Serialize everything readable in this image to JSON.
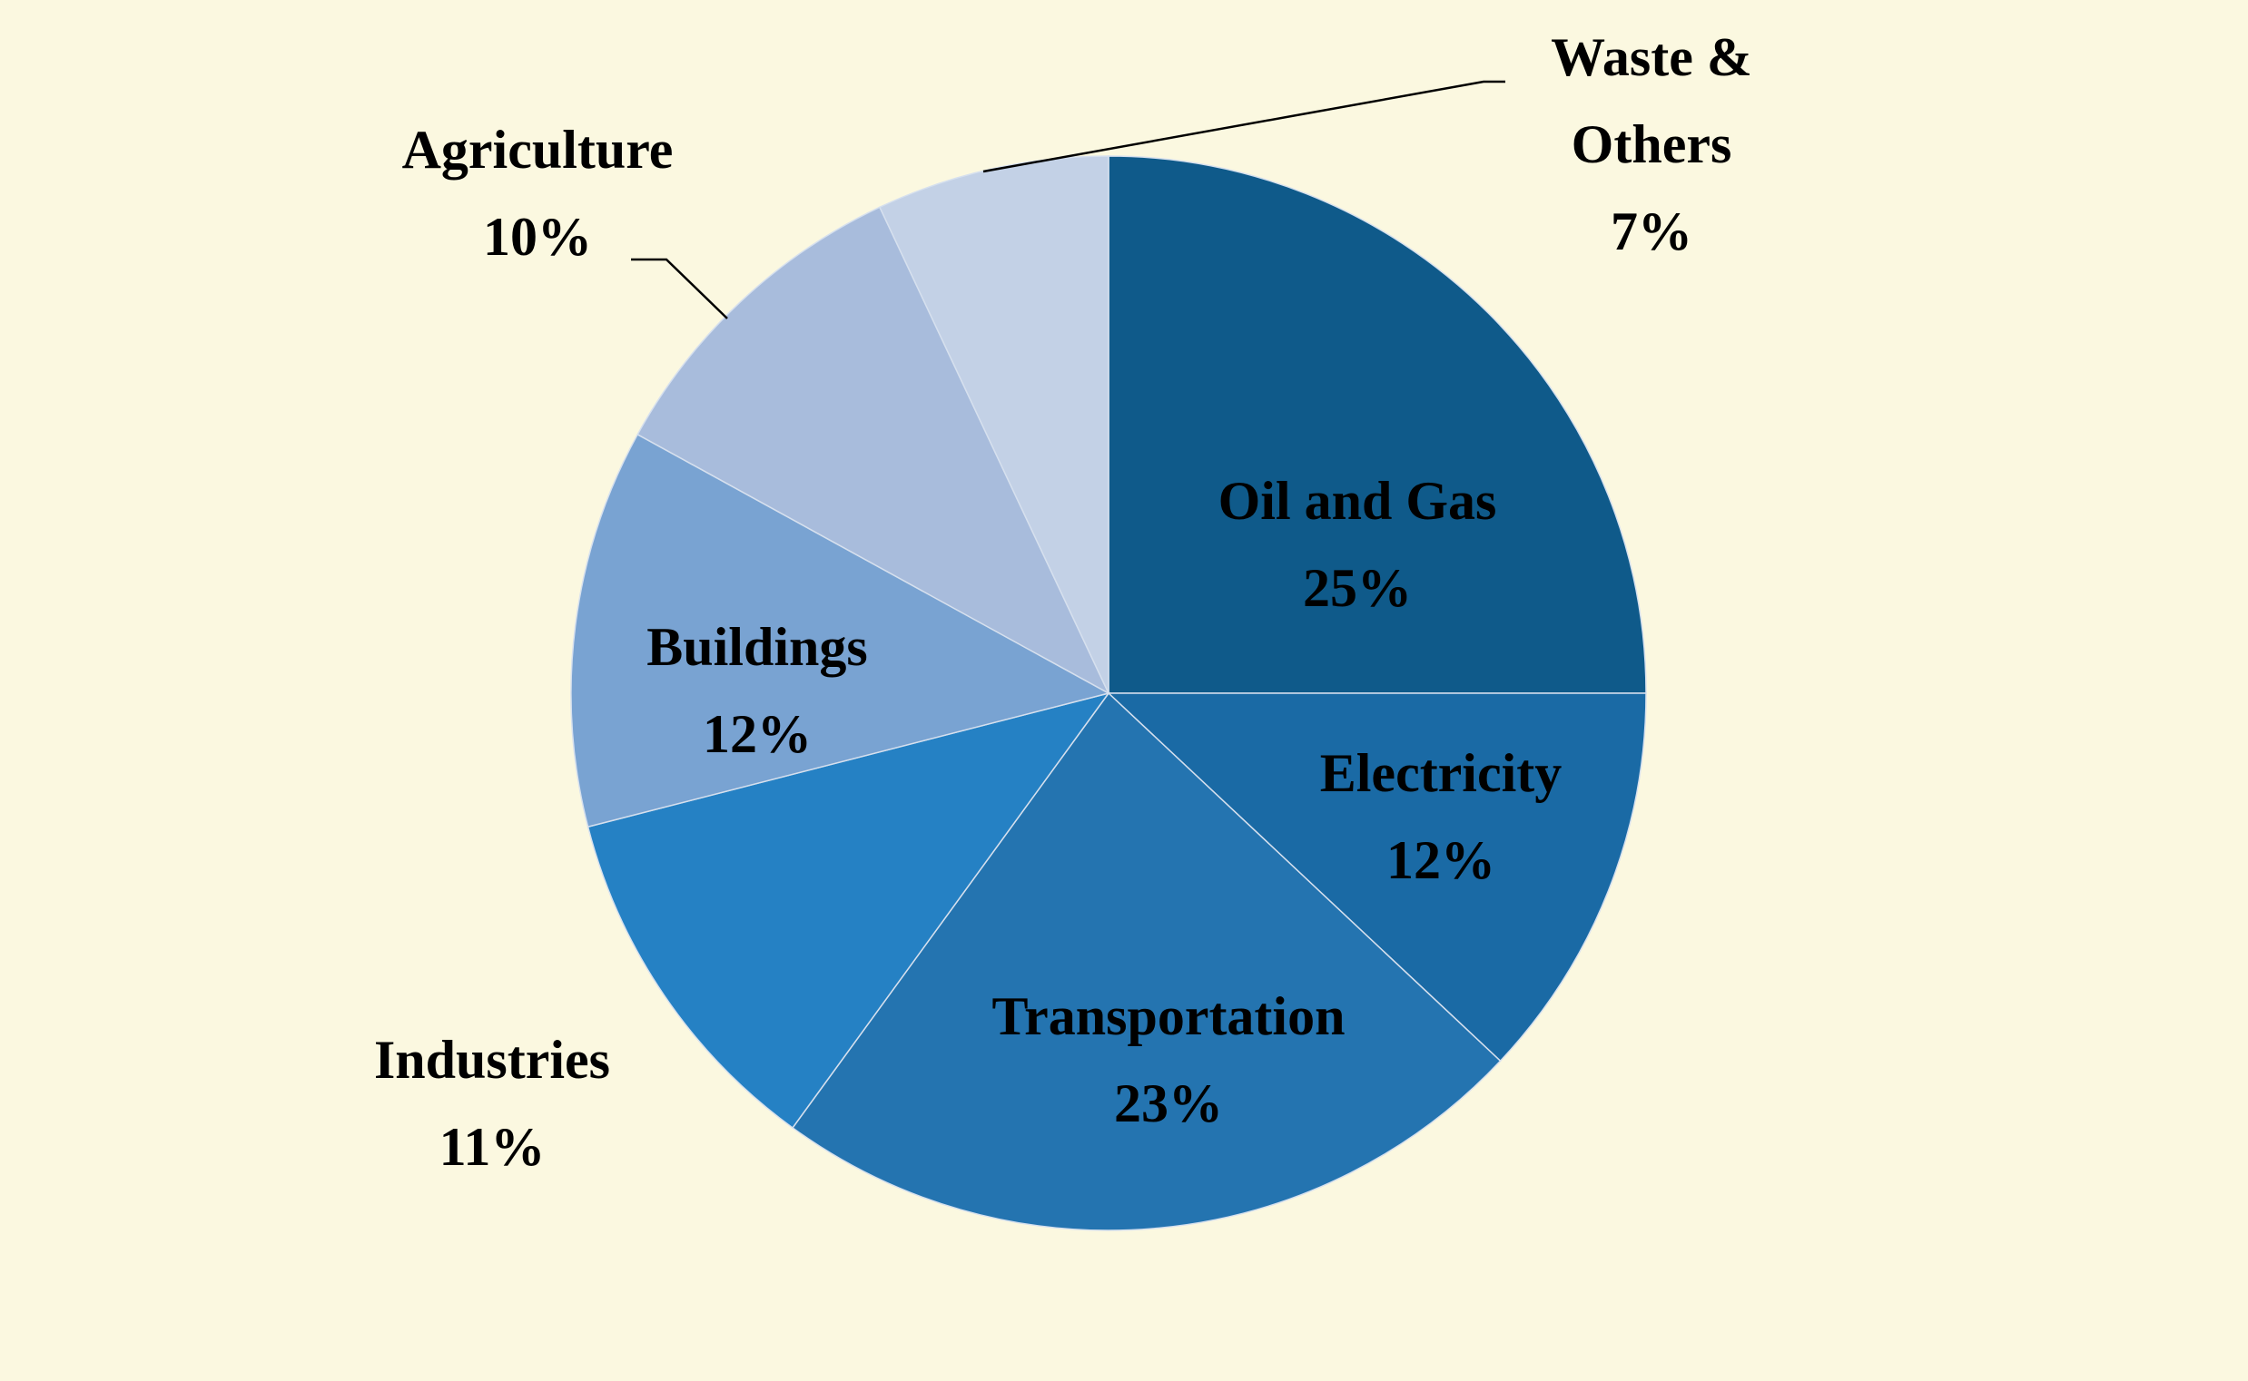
{
  "chart_data": {
    "type": "pie",
    "categories": [
      "Oil and Gas",
      "Electricity",
      "Transportation",
      "Industries",
      "Buildings",
      "Agriculture",
      "Waste & Others"
    ],
    "values": [
      25,
      12,
      23,
      11,
      12,
      10,
      7
    ],
    "value_labels": [
      "25%",
      "12%",
      "23%",
      "11%",
      "12%",
      "10%",
      "7%"
    ],
    "colors": [
      "#0f5a8a",
      "#1a6aa5",
      "#2474b0",
      "#2581c4",
      "#79a3d2",
      "#a8bcdc",
      "#c3d1e6"
    ]
  }
}
